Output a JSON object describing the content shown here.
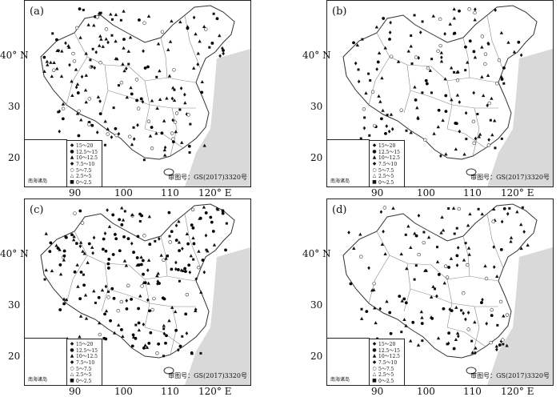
{
  "panels": [
    {
      "label": "(a)"
    },
    {
      "label": "(b)"
    },
    {
      "label": "(c)"
    },
    {
      "label": "(d)"
    }
  ],
  "axes": {
    "y_ticks": [
      "40° N",
      "30",
      "20"
    ],
    "x_ticks": [
      "90",
      "100",
      "110",
      "120° E"
    ]
  },
  "legend": {
    "items": [
      {
        "sym": "◆",
        "label": "15～20"
      },
      {
        "sym": "●",
        "label": "12.5～15"
      },
      {
        "sym": "▲",
        "label": "10～12.5"
      },
      {
        "sym": "◆",
        "label": "7.5～10"
      },
      {
        "sym": "○",
        "label": "5～7.5"
      },
      {
        "sym": "△",
        "label": "2.5～5"
      },
      {
        "sym": "■",
        "label": "0～2.5"
      }
    ]
  },
  "approval_text": "审图号：GS(2017)3320号",
  "inset_label": "南海诸岛"
}
